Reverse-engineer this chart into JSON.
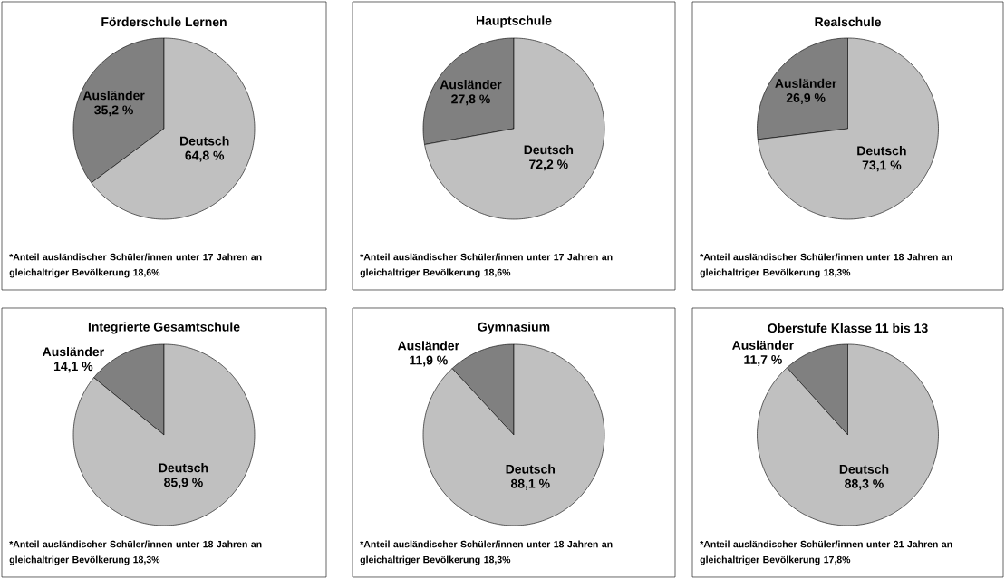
{
  "chart_data": [
    {
      "type": "pie",
      "title": "Förderschule Lernen",
      "categories": [
        "Ausländer",
        "Deutsch"
      ],
      "values": [
        35.2,
        64.8
      ],
      "colors": [
        "#808080",
        "#c0c0c0"
      ],
      "value_labels": [
        "35,2 %",
        "64,8 %"
      ],
      "annotations": [
        "*Anteil ausländischer Schüler/innen unter 17 Jahren an gleichaltriger Bevölkerung 18,6%"
      ]
    },
    {
      "type": "pie",
      "title": "Hauptschule",
      "categories": [
        "Ausländer",
        "Deutsch"
      ],
      "values": [
        27.8,
        72.2
      ],
      "colors": [
        "#808080",
        "#c0c0c0"
      ],
      "value_labels": [
        "27,8 %",
        "72,2 %"
      ],
      "annotations": [
        "*Anteil ausländischer Schüler/innen unter 17 Jahren an gleichaltriger Bevölkerung 18,6%"
      ]
    },
    {
      "type": "pie",
      "title": "Realschule",
      "categories": [
        "Ausländer",
        "Deutsch"
      ],
      "values": [
        26.9,
        73.1
      ],
      "colors": [
        "#808080",
        "#c0c0c0"
      ],
      "value_labels": [
        "26,9 %",
        "73,1 %"
      ],
      "annotations": [
        "*Anteil ausländischer Schüler/innen unter 18 Jahren an gleichaltriger Bevölkerung 18,3%"
      ]
    },
    {
      "type": "pie",
      "title": "Integrierte Gesamtschule",
      "categories": [
        "Ausländer",
        "Deutsch"
      ],
      "values": [
        14.1,
        85.9
      ],
      "colors": [
        "#808080",
        "#c0c0c0"
      ],
      "value_labels": [
        "14,1 %",
        "85,9 %"
      ],
      "annotations": [
        "*Anteil ausländischer Schüler/innen unter 18 Jahren an gleichaltriger Bevölkerung 18,3%"
      ]
    },
    {
      "type": "pie",
      "title": "Gymnasium",
      "categories": [
        "Ausländer",
        "Deutsch"
      ],
      "values": [
        11.9,
        88.1
      ],
      "colors": [
        "#808080",
        "#c0c0c0"
      ],
      "value_labels": [
        "11,9 %",
        "88,1 %"
      ],
      "annotations": [
        "*Anteil ausländischer Schüler/innen unter 18 Jahren an gleichaltriger Bevölkerung 18,3%"
      ]
    },
    {
      "type": "pie",
      "title": "Oberstufe Klasse 11 bis 13",
      "categories": [
        "Ausländer",
        "Deutsch"
      ],
      "values": [
        11.7,
        88.3
      ],
      "colors": [
        "#808080",
        "#c0c0c0"
      ],
      "value_labels": [
        "11,7 %",
        "88,3 %"
      ],
      "annotations": [
        "*Anteil ausländischer Schüler/innen unter 21 Jahren an gleichaltriger Bevölkerung 17,8%"
      ]
    }
  ]
}
